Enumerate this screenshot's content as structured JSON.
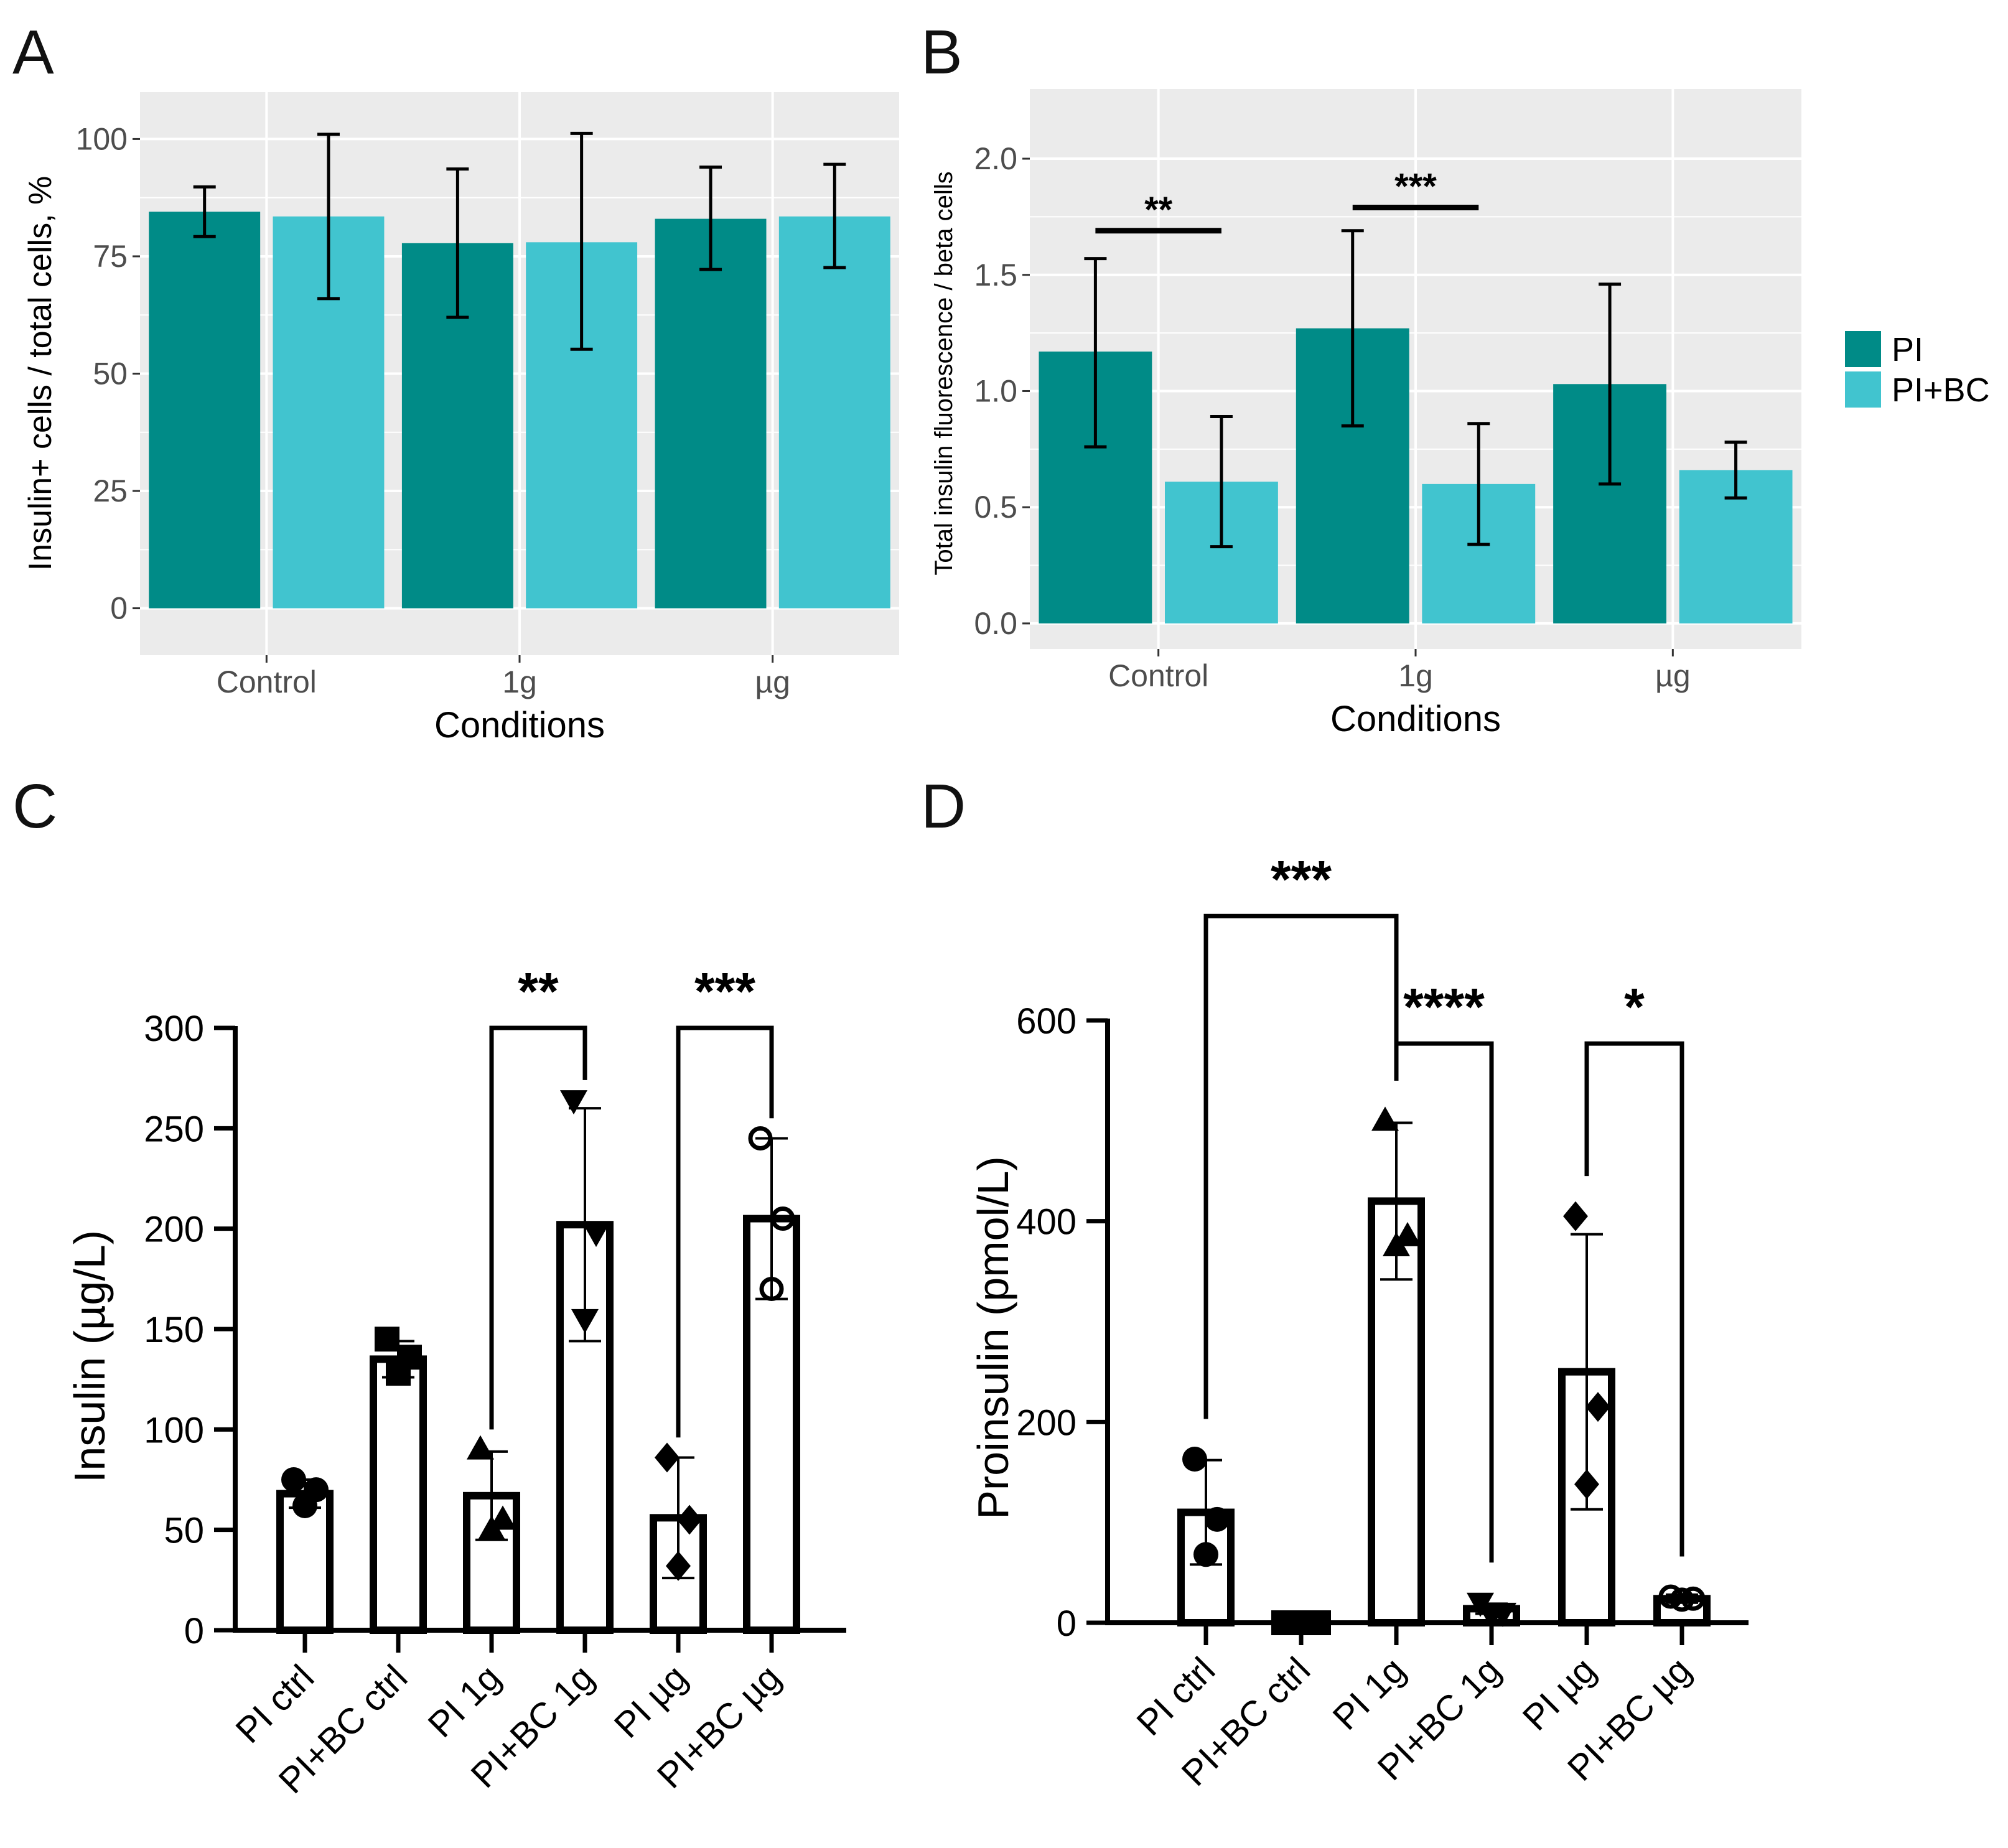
{
  "colors": {
    "PI": "#008B87",
    "PI+BC": "#41C4CF",
    "panel_bg": "#EBEBEB",
    "grid": "#FFFFFF"
  },
  "legend": {
    "entries": [
      "PI",
      "PI+BC"
    ]
  },
  "chart_data": [
    {
      "panel": "A",
      "type": "bar",
      "xlabel": "Conditions",
      "ylabel": "Insulin+ cells / total cells, %",
      "categories": [
        "Control",
        "1g",
        "µg"
      ],
      "yticks": [
        "0",
        "25",
        "50",
        "75",
        "100"
      ],
      "ylim": [
        -10,
        110
      ],
      "series": [
        {
          "name": "PI",
          "values": [
            84.5,
            77.8,
            83.0
          ],
          "err_low": [
            79.2,
            62.0,
            72.2
          ],
          "err_high": [
            89.8,
            93.6,
            94.0
          ]
        },
        {
          "name": "PI+BC",
          "values": [
            83.5,
            78.0,
            83.5
          ],
          "err_low": [
            66.0,
            55.2,
            72.6
          ],
          "err_high": [
            101.0,
            101.2,
            94.6
          ]
        }
      ]
    },
    {
      "panel": "B",
      "type": "bar",
      "xlabel": "Conditions",
      "ylabel": "Total insulin fluorescence / beta cells",
      "categories": [
        "Control",
        "1g",
        "µg"
      ],
      "yticks": [
        "0.0",
        "0.5",
        "1.0",
        "1.5",
        "2.0"
      ],
      "ylim": [
        -0.11,
        2.3
      ],
      "series": [
        {
          "name": "PI",
          "values": [
            1.17,
            1.27,
            1.03
          ],
          "err_low": [
            0.76,
            0.85,
            0.6
          ],
          "err_high": [
            1.57,
            1.69,
            1.46
          ]
        },
        {
          "name": "PI+BC",
          "values": [
            0.61,
            0.6,
            0.66
          ],
          "err_low": [
            0.33,
            0.34,
            0.54
          ],
          "err_high": [
            0.89,
            0.86,
            0.78
          ]
        }
      ],
      "annotations": [
        {
          "label": "**",
          "from": "Control PI",
          "to": "Control PI+BC",
          "y": 1.69
        },
        {
          "label": "***",
          "from": "1g PI",
          "to": "1g PI+BC",
          "y": 1.79
        }
      ]
    },
    {
      "panel": "C",
      "type": "bar",
      "ylabel": "Insulin (µg/L)",
      "categories": [
        "PI ctrl",
        "PI+BC ctrl",
        "PI 1g",
        "PI+BC 1g",
        "PI µg",
        "PI+BC µg"
      ],
      "yticks": [
        "0",
        "50",
        "100",
        "150",
        "200",
        "250",
        "300"
      ],
      "ylim": [
        0,
        300
      ],
      "values": [
        68,
        135,
        67,
        202,
        56,
        205
      ],
      "sd": [
        7,
        9,
        22,
        58,
        30,
        40
      ],
      "points": [
        [
          75,
          70,
          62
        ],
        [
          145,
          136,
          128
        ],
        [
          90,
          55,
          50
        ],
        [
          264,
          198,
          155
        ],
        [
          86,
          55,
          32
        ],
        [
          245,
          205,
          170
        ]
      ],
      "markers": [
        "circle",
        "square",
        "triangle-up",
        "triangle-down",
        "diamond",
        "circle-open"
      ],
      "annotations": [
        {
          "label": "**",
          "from": "PI 1g",
          "to": "PI+BC 1g",
          "y": 300
        },
        {
          "label": "***",
          "from": "PI µg",
          "to": "PI+BC µg",
          "y": 300
        }
      ]
    },
    {
      "panel": "D",
      "type": "bar",
      "ylabel": "Proinsulin (pmol/L)",
      "categories": [
        "PI ctrl",
        "PI+BC ctrl",
        "PI 1g",
        "PI+BC 1g",
        "PI µg",
        "PI+BC µg"
      ],
      "yticks": [
        "0",
        "200",
        "400",
        "600"
      ],
      "ylim": [
        0,
        600
      ],
      "values": [
        110,
        0,
        420,
        14,
        250,
        24
      ],
      "sd": [
        52,
        0,
        78,
        5,
        137,
        4
      ],
      "points": [
        [
          163,
          103,
          68
        ],
        [
          0,
          0,
          0
        ],
        [
          500,
          385,
          375
        ],
        [
          20,
          10,
          8
        ],
        [
          405,
          215,
          138
        ],
        [
          26,
          24,
          23
        ]
      ],
      "markers": [
        "circle",
        "square",
        "triangle-up",
        "triangle-down",
        "diamond",
        "circle-open"
      ],
      "annotations": [
        {
          "label": "***",
          "from": "PI ctrl",
          "to": "PI 1g",
          "y": 704
        },
        {
          "label": "****",
          "from": "PI 1g",
          "to": "PI+BC 1g",
          "y": 577
        },
        {
          "label": "*",
          "from": "PI µg",
          "to": "PI+BC µg",
          "y": 577
        }
      ]
    }
  ]
}
